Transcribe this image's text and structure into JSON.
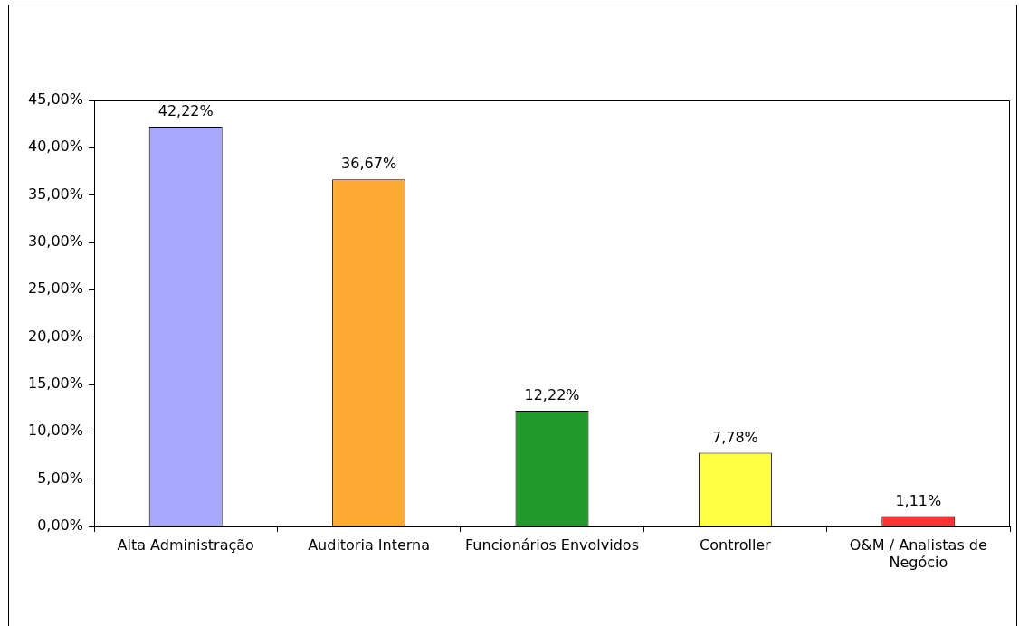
{
  "chart_data": {
    "type": "bar",
    "categories": [
      "Alta Administração",
      "Auditoria Interna",
      "Funcionários Envolvidos",
      "Controller",
      "O&M / Analistas de Negócio"
    ],
    "values": [
      42.22,
      36.67,
      12.22,
      7.78,
      1.11
    ],
    "colors": [
      "#a8a8ff",
      "#ffaa33",
      "#22992a",
      "#ffff44",
      "#ff3333"
    ],
    "value_labels": [
      "42,22%",
      "36,67%",
      "12,22%",
      "7,78%",
      "1,11%"
    ],
    "ylim": [
      0,
      45
    ],
    "yticks": [
      {
        "value": 0,
        "label": "0,00%"
      },
      {
        "value": 5,
        "label": "5,00%"
      },
      {
        "value": 10,
        "label": "10,00%"
      },
      {
        "value": 15,
        "label": "15,00%"
      },
      {
        "value": 20,
        "label": "20,00%"
      },
      {
        "value": 25,
        "label": "25,00%"
      },
      {
        "value": 30,
        "label": "30,00%"
      },
      {
        "value": 35,
        "label": "35,00%"
      },
      {
        "value": 40,
        "label": "40,00%"
      },
      {
        "value": 45,
        "label": "45,00%"
      }
    ]
  }
}
